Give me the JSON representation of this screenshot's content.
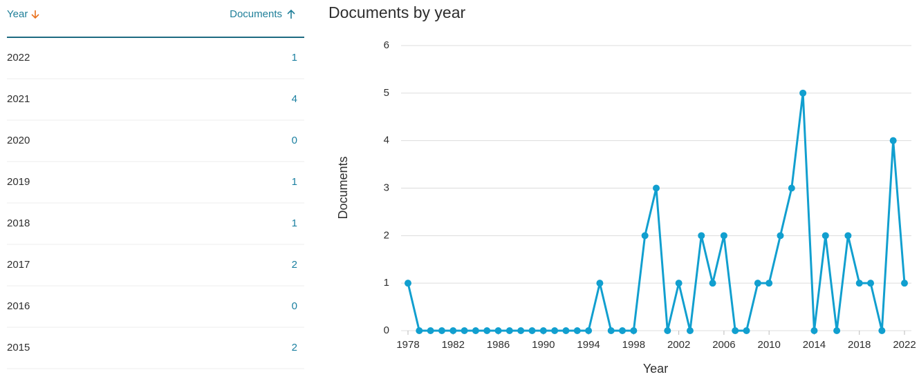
{
  "table": {
    "header": [
      "Year",
      "Documents"
    ],
    "rows": [
      [
        "2022",
        "1"
      ],
      [
        "2021",
        "4"
      ],
      [
        "2020",
        "0"
      ],
      [
        "2019",
        "1"
      ],
      [
        "2018",
        "1"
      ],
      [
        "2017",
        "2"
      ],
      [
        "2016",
        "0"
      ],
      [
        "2015",
        "2"
      ]
    ]
  },
  "chart_data": {
    "type": "line",
    "title": "Documents by year",
    "x_label": "Year",
    "y_label": "Documents",
    "x": [
      1978,
      1979,
      1980,
      1981,
      1982,
      1983,
      1984,
      1985,
      1986,
      1987,
      1988,
      1989,
      1990,
      1991,
      1992,
      1993,
      1994,
      1995,
      1996,
      1997,
      1998,
      1999,
      2000,
      2001,
      2002,
      2003,
      2004,
      2005,
      2006,
      2007,
      2008,
      2009,
      2010,
      2011,
      2012,
      2013,
      2014,
      2015,
      2016,
      2017,
      2018,
      2019,
      2020,
      2021,
      2022
    ],
    "values": [
      1,
      0,
      0,
      0,
      0,
      0,
      0,
      0,
      0,
      0,
      0,
      0,
      0,
      0,
      0,
      0,
      0,
      1,
      0,
      0,
      0,
      2,
      3,
      0,
      1,
      0,
      2,
      1,
      2,
      0,
      0,
      1,
      1,
      2,
      3,
      5,
      0,
      2,
      0,
      2,
      1,
      1,
      0,
      4,
      1
    ],
    "color": "#119fcf",
    "xlim": [
      1978,
      2022
    ],
    "xticks": [
      1978,
      1982,
      1986,
      1990,
      1994,
      1998,
      2002,
      2006,
      2010,
      2014,
      2018,
      2022
    ],
    "ylim": [
      0,
      6
    ],
    "yticks": [
      0,
      1,
      2,
      3,
      4,
      5,
      6
    ],
    "grid": true
  }
}
